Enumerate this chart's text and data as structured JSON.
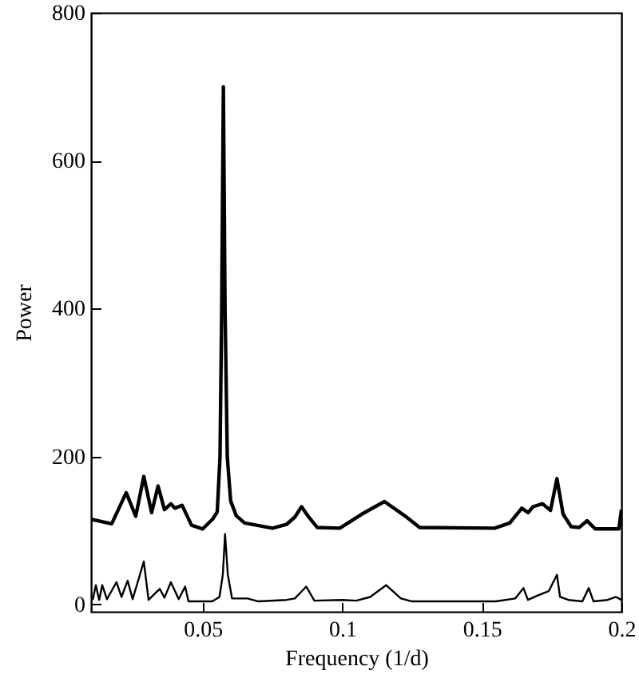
{
  "chart_data": {
    "type": "line",
    "xlabel": "Frequency (1/d)",
    "ylabel": "Power",
    "xlim": [
      0.01,
      0.2
    ],
    "xticks": [
      0.05,
      0.1,
      0.15,
      0.2
    ],
    "ylim": [
      -10,
      800
    ],
    "yticks": [
      0,
      200,
      400,
      600,
      800
    ],
    "grid": false,
    "marker": "none",
    "line_style": "solid",
    "series": [
      {
        "color": "#000000",
        "x": [
          0.01,
          0.0174,
          0.0226,
          0.026,
          0.0289,
          0.0317,
          0.034,
          0.0363,
          0.0386,
          0.04,
          0.0426,
          0.046,
          0.05,
          0.0535,
          0.0552,
          0.0562,
          0.0568,
          0.0574,
          0.058,
          0.0588,
          0.06,
          0.062,
          0.065,
          0.075,
          0.08,
          0.083,
          0.0854,
          0.088,
          0.091,
          0.0991,
          0.107,
          0.1151,
          0.123,
          0.1277,
          0.1546,
          0.16,
          0.1643,
          0.1666,
          0.1683,
          0.1717,
          0.1746,
          0.1769,
          0.1791,
          0.182,
          0.1849,
          0.1877,
          0.1906,
          0.1991,
          0.2
        ],
        "values": [
          115,
          109,
          151,
          119,
          173,
          124,
          160,
          128,
          136,
          130,
          134,
          107,
          102,
          115,
          125,
          200,
          400,
          700,
          400,
          200,
          140,
          120,
          110,
          103,
          108,
          118,
          132,
          118,
          104,
          103,
          122,
          139,
          118,
          104,
          103,
          110,
          130,
          124,
          132,
          136,
          127,
          170,
          122,
          105,
          104,
          113,
          102,
          102,
          128
        ]
      },
      {
        "color": "#000000",
        "x": [
          0.0106,
          0.0117,
          0.0129,
          0.014,
          0.0157,
          0.0191,
          0.0209,
          0.0231,
          0.0249,
          0.0289,
          0.0306,
          0.0346,
          0.0363,
          0.0386,
          0.0414,
          0.0437,
          0.0449,
          0.0534,
          0.056,
          0.0572,
          0.058,
          0.059,
          0.0605,
          0.066,
          0.07,
          0.08,
          0.083,
          0.0871,
          0.09,
          0.1,
          0.105,
          0.11,
          0.1157,
          0.121,
          0.125,
          0.14,
          0.155,
          0.162,
          0.1649,
          0.1665,
          0.17,
          0.174,
          0.1769,
          0.178,
          0.181,
          0.186,
          0.1883,
          0.19,
          0.195,
          0.198,
          0.2
        ],
        "values": [
          6,
          26,
          6,
          26,
          7,
          30,
          10,
          32,
          7,
          58,
          6,
          21,
          9,
          30,
          7,
          24,
          4,
          4,
          10,
          40,
          95,
          40,
          8,
          8,
          4,
          6,
          8,
          24,
          5,
          6,
          5,
          10,
          26,
          8,
          4,
          4,
          4,
          8,
          22,
          6,
          12,
          18,
          40,
          10,
          6,
          4,
          22,
          4,
          6,
          10,
          6
        ]
      }
    ]
  }
}
